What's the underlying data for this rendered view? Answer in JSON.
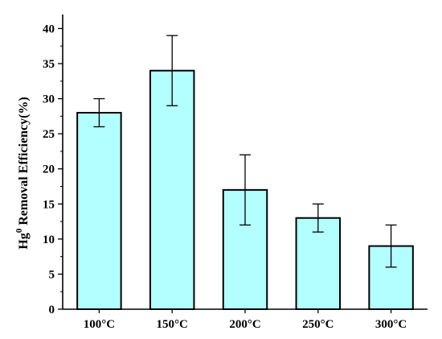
{
  "chart_data": {
    "type": "bar",
    "categories": [
      "100°C",
      "150°C",
      "200°C",
      "250°C",
      "300°C"
    ],
    "values": [
      28,
      34,
      17,
      13,
      9
    ],
    "error_low": [
      26,
      29,
      12,
      11,
      6
    ],
    "error_high": [
      30,
      39,
      22,
      15,
      12
    ],
    "ylabel_main": "Hg",
    "ylabel_sup": "0",
    "ylabel_rest": " Removal Efficiency(%)",
    "ylim": [
      0,
      42
    ],
    "yticks": [
      0,
      5,
      10,
      15,
      20,
      25,
      30,
      35,
      40
    ],
    "grid": false,
    "bar_color": "#b3ffff",
    "edge_color": "#000000"
  }
}
